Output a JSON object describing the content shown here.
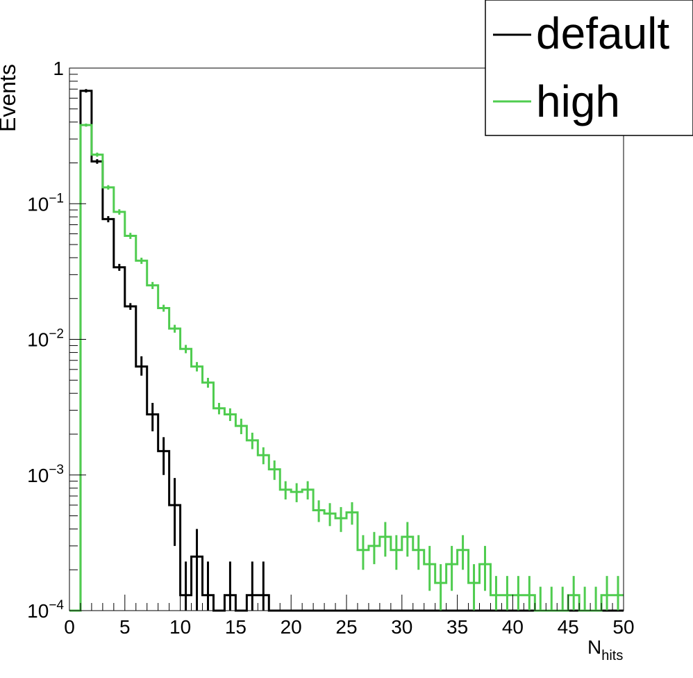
{
  "chart_data": {
    "type": "histogram",
    "title": "",
    "xlabel": {
      "main": "N",
      "sub": "hits"
    },
    "ylabel": "Events",
    "xlim": [
      0,
      50
    ],
    "ylim": [
      0.0001,
      1
    ],
    "yscale": "log",
    "bin_width": 1,
    "x_ticks": [
      "0",
      "5",
      "10",
      "15",
      "20",
      "25",
      "30",
      "35",
      "40",
      "45",
      "50"
    ],
    "y_ticks": [
      {
        "value": 1,
        "base": "1",
        "exp": ""
      },
      {
        "value": 0.1,
        "base": "10",
        "exp": "−1"
      },
      {
        "value": 0.01,
        "base": "10",
        "exp": "−2"
      },
      {
        "value": 0.001,
        "base": "10",
        "exp": "−3"
      },
      {
        "value": 0.0001,
        "base": "10",
        "exp": "−4"
      }
    ],
    "grid": false,
    "legend_position": "top-right",
    "series": [
      {
        "name": "default",
        "color": "#000000",
        "bin_edges_start": 0,
        "values": [
          0,
          0.68,
          0.205,
          0.077,
          0.034,
          0.0175,
          0.0063,
          0.0028,
          0.0015,
          0.0006,
          0.00013,
          0.00025,
          0.00013,
          0,
          0.00013,
          0,
          0.00013,
          0.00013,
          0,
          0,
          0,
          0,
          0,
          0,
          0,
          0,
          0,
          0,
          0,
          0,
          0,
          0,
          0,
          0,
          0,
          0,
          0,
          0,
          0,
          0,
          0,
          0,
          0,
          0,
          0,
          0,
          0,
          0,
          0,
          0
        ],
        "errors_low": [
          0,
          0.02,
          0.008,
          0.004,
          0.002,
          0.001,
          0.0009,
          0.0007,
          0.0005,
          0.0003,
          0.0001,
          0.00015,
          0.0001,
          0,
          0.0001,
          0,
          0.0001,
          0.0001,
          0,
          0,
          0,
          0,
          0,
          0,
          0,
          0,
          0,
          0,
          0,
          0,
          0,
          0,
          0,
          0,
          0,
          0,
          0,
          0,
          0,
          0,
          0,
          0,
          0,
          0,
          0,
          0,
          0,
          0,
          0,
          0
        ],
        "errors_high": [
          0,
          0.02,
          0.008,
          0.004,
          0.002,
          0.001,
          0.0012,
          0.0006,
          0.0004,
          0.00035,
          0.0001,
          0.00015,
          0.0001,
          0,
          0.0001,
          0,
          0.0001,
          0.0001,
          0,
          0,
          0,
          0,
          0,
          0,
          0,
          0,
          0,
          0,
          0,
          0,
          0,
          0,
          0,
          0,
          0,
          0,
          0,
          0,
          0,
          0,
          0,
          0,
          0,
          0,
          0,
          0,
          0,
          0,
          0,
          0
        ]
      },
      {
        "name": "high",
        "color": "#4fcc4f",
        "bin_edges_start": 0,
        "values": [
          0,
          0.38,
          0.23,
          0.132,
          0.087,
          0.058,
          0.038,
          0.025,
          0.017,
          0.012,
          0.0085,
          0.0063,
          0.0048,
          0.0031,
          0.0028,
          0.0023,
          0.0018,
          0.0014,
          0.0011,
          0.00078,
          0.00075,
          0.00078,
          0.00055,
          0.00052,
          0.00048,
          0.00053,
          0.00028,
          0.0003,
          0.00035,
          0.00028,
          0.00035,
          0.00028,
          0.00022,
          0.00016,
          0.00022,
          0.00028,
          0.00016,
          0.00022,
          0.00013,
          0.00013,
          0.00013,
          0.00013,
          0.0001,
          0.0001,
          0.0001,
          0.00013,
          0.0001,
          0.0001,
          0.00013,
          0.00013
        ],
        "errors_low": [
          0,
          0.01,
          0.008,
          0.005,
          0.004,
          0.003,
          0.002,
          0.0015,
          0.001,
          0.0008,
          0.0006,
          0.0005,
          0.0004,
          0.0003,
          0.0003,
          0.0003,
          0.00025,
          0.0002,
          0.00018,
          0.00012,
          0.00012,
          0.00012,
          0.0001,
          0.0001,
          0.0001,
          0.0001,
          8e-05,
          8e-05,
          0.0001,
          8e-05,
          0.0001,
          8e-05,
          8e-05,
          6e-05,
          8e-05,
          8e-05,
          6e-05,
          8e-05,
          5e-05,
          5e-05,
          5e-05,
          5e-05,
          5e-05,
          5e-05,
          5e-05,
          5e-05,
          5e-05,
          5e-05,
          5e-05,
          5e-05
        ],
        "errors_high": [
          0,
          0.01,
          0.008,
          0.005,
          0.004,
          0.003,
          0.002,
          0.0015,
          0.001,
          0.0008,
          0.0006,
          0.0005,
          0.0004,
          0.0003,
          0.0003,
          0.0003,
          0.00025,
          0.0002,
          0.00018,
          0.00012,
          0.00012,
          0.00012,
          0.0001,
          0.0001,
          0.0001,
          0.0001,
          8e-05,
          8e-05,
          0.0001,
          8e-05,
          0.0001,
          8e-05,
          8e-05,
          6e-05,
          8e-05,
          8e-05,
          6e-05,
          8e-05,
          5e-05,
          5e-05,
          5e-05,
          5e-05,
          5e-05,
          5e-05,
          5e-05,
          5e-05,
          5e-05,
          5e-05,
          5e-05,
          5e-05
        ]
      }
    ]
  }
}
